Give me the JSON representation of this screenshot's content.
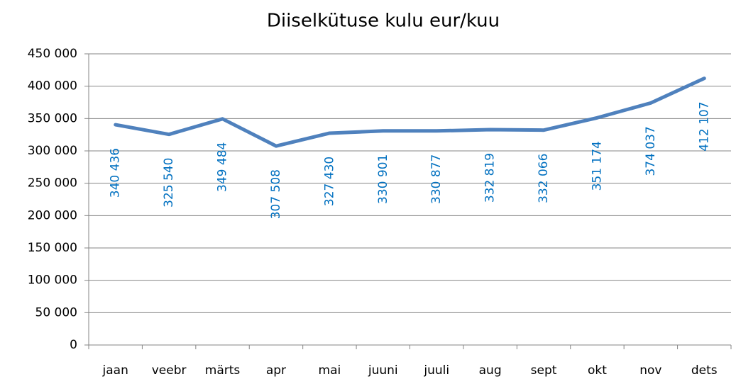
{
  "chart_data": {
    "type": "line",
    "title": "Diiselkütuse kulu eur/kuu",
    "categories": [
      "jaan",
      "veebr",
      "märts",
      "apr",
      "mai",
      "juuni",
      "juuli",
      "aug",
      "sept",
      "okt",
      "nov",
      "dets"
    ],
    "series": [
      {
        "name": "Diiselkütuse kulu eur/kuu",
        "color": "#4f81bd",
        "values": [
          340436,
          325540,
          349484,
          307508,
          327430,
          330901,
          330877,
          332819,
          332066,
          351174,
          374037,
          412107
        ],
        "value_labels": [
          "340 436",
          "325 540",
          "349 484",
          "307 508",
          "327 430",
          "330 901",
          "330 877",
          "332 819",
          "332 066",
          "351 174",
          "374 037",
          "412 107"
        ]
      }
    ],
    "ylim": [
      0,
      450000
    ],
    "yticks": [
      0,
      {
        "value": 50000,
        "label": "50 000"
      },
      {
        "value": 100000,
        "label": "100 000"
      },
      {
        "value": 150000,
        "label": "150 000"
      },
      {
        "value": 200000,
        "label": "200 000"
      },
      {
        "value": 250000,
        "label": "250 000"
      },
      {
        "value": 300000,
        "label": "300 000"
      },
      {
        "value": 350000,
        "label": "350 000"
      },
      {
        "value": 400000,
        "label": "400 000"
      },
      {
        "value": 450000,
        "label": "450 000"
      }
    ],
    "grid": true
  }
}
